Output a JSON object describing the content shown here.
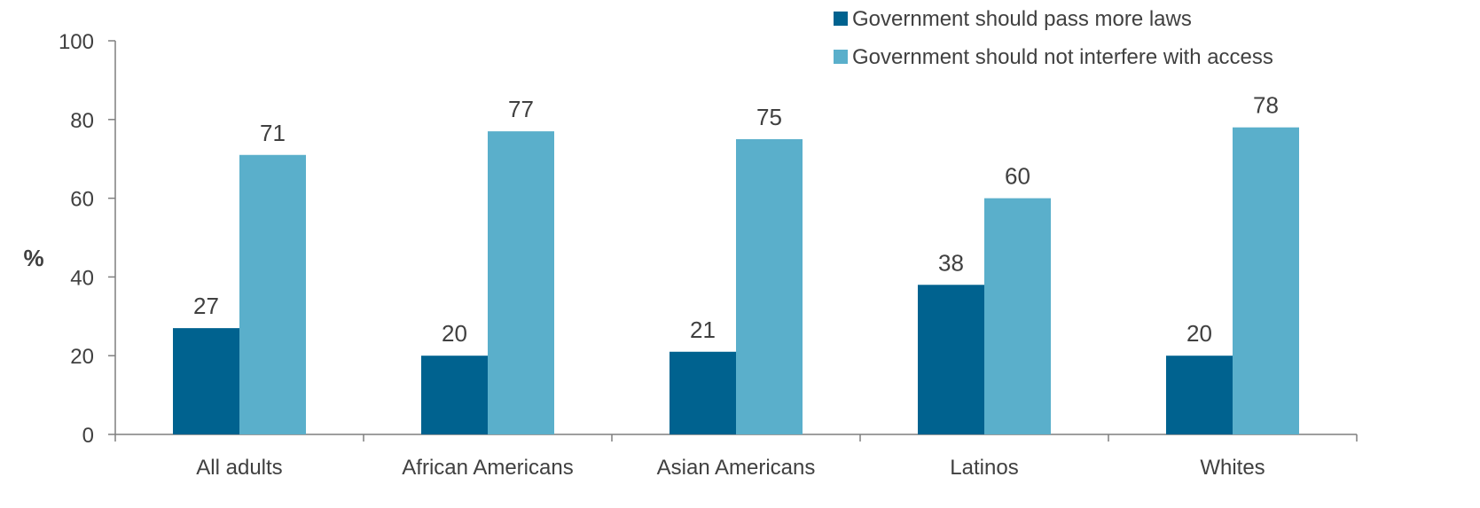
{
  "chart_data": {
    "type": "bar",
    "title": "",
    "xlabel": "",
    "ylabel": "%",
    "ylim": [
      0,
      100
    ],
    "yticks": [
      0,
      20,
      40,
      60,
      80,
      100
    ],
    "grid": false,
    "legend_position": "top-right",
    "categories": [
      "All adults",
      "African Americans",
      "Asian Americans",
      "Latinos",
      "Whites"
    ],
    "series": [
      {
        "name": "Government should pass more laws",
        "color": "#00628f",
        "values": [
          27,
          20,
          21,
          38,
          20
        ]
      },
      {
        "name": "Government should not interfere with access",
        "color": "#5aafcb",
        "values": [
          71,
          77,
          75,
          60,
          78
        ]
      }
    ]
  }
}
